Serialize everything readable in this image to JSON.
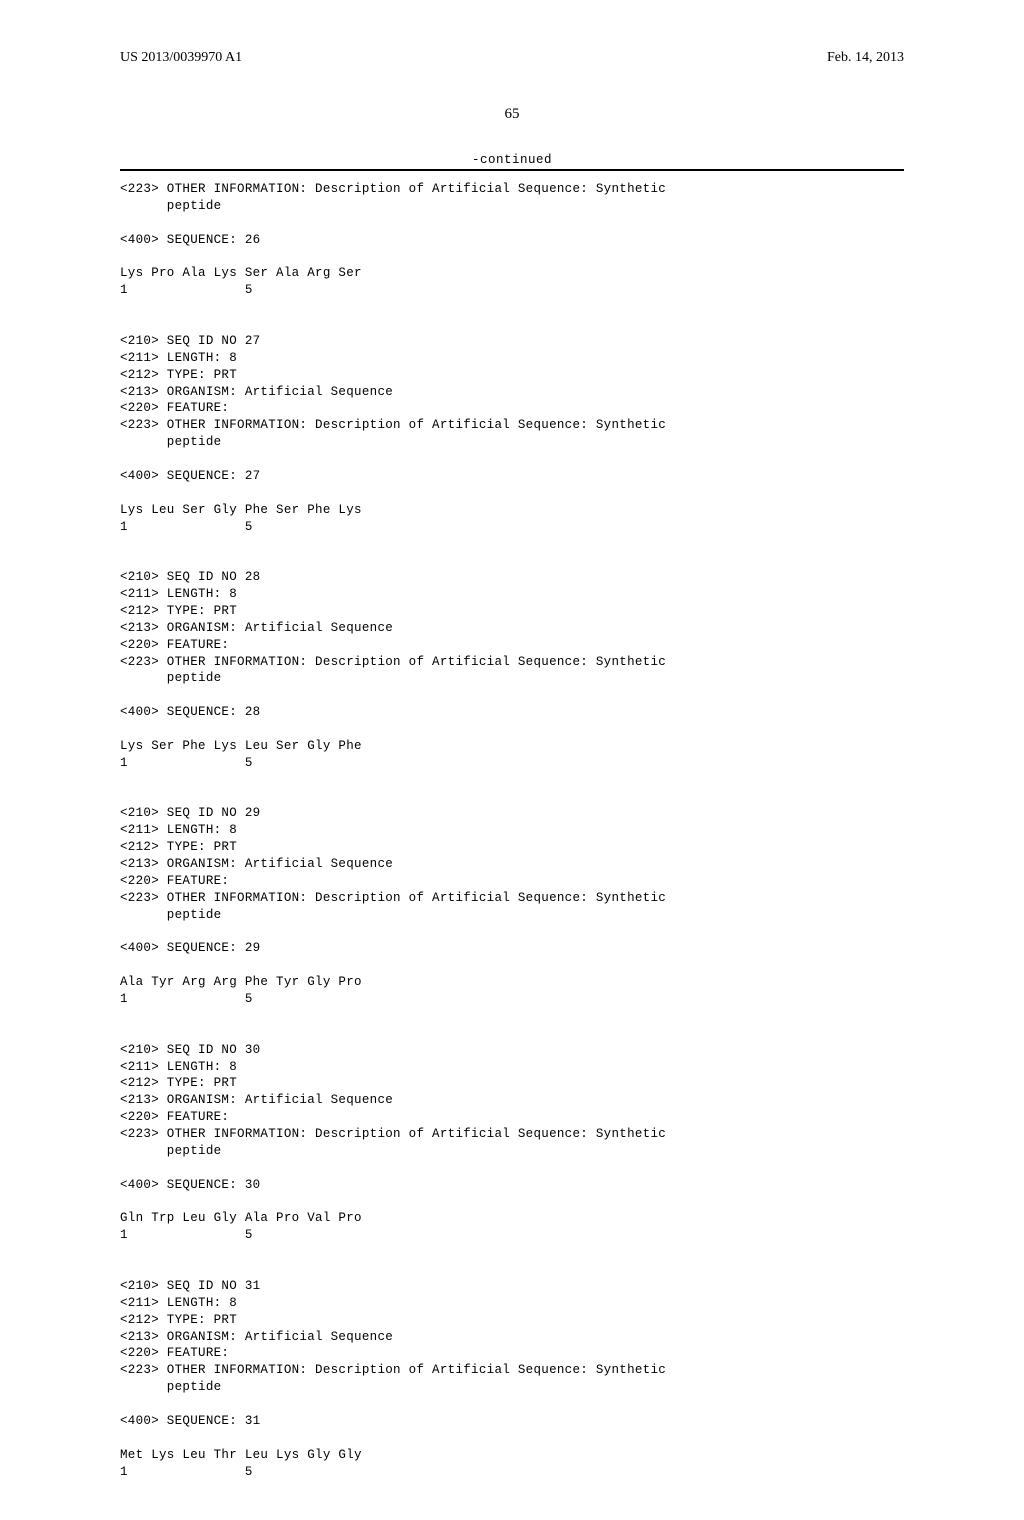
{
  "header": {
    "left": "US 2013/0039970 A1",
    "right": "Feb. 14, 2013"
  },
  "page_number": "65",
  "continued_label": "-continued",
  "entries": [
    {
      "pre_lines": [
        "<223> OTHER INFORMATION: Description of Artificial Sequence: Synthetic",
        "      peptide",
        "",
        "<400> SEQUENCE: 26",
        ""
      ],
      "seq_line": "Lys Pro Ala Lys Ser Ala Arg Ser",
      "pos_line": "1               5"
    },
    {
      "pre_lines": [
        "",
        "",
        "<210> SEQ ID NO 27",
        "<211> LENGTH: 8",
        "<212> TYPE: PRT",
        "<213> ORGANISM: Artificial Sequence",
        "<220> FEATURE:",
        "<223> OTHER INFORMATION: Description of Artificial Sequence: Synthetic",
        "      peptide",
        "",
        "<400> SEQUENCE: 27",
        ""
      ],
      "seq_line": "Lys Leu Ser Gly Phe Ser Phe Lys",
      "pos_line": "1               5"
    },
    {
      "pre_lines": [
        "",
        "",
        "<210> SEQ ID NO 28",
        "<211> LENGTH: 8",
        "<212> TYPE: PRT",
        "<213> ORGANISM: Artificial Sequence",
        "<220> FEATURE:",
        "<223> OTHER INFORMATION: Description of Artificial Sequence: Synthetic",
        "      peptide",
        "",
        "<400> SEQUENCE: 28",
        ""
      ],
      "seq_line": "Lys Ser Phe Lys Leu Ser Gly Phe",
      "pos_line": "1               5"
    },
    {
      "pre_lines": [
        "",
        "",
        "<210> SEQ ID NO 29",
        "<211> LENGTH: 8",
        "<212> TYPE: PRT",
        "<213> ORGANISM: Artificial Sequence",
        "<220> FEATURE:",
        "<223> OTHER INFORMATION: Description of Artificial Sequence: Synthetic",
        "      peptide",
        "",
        "<400> SEQUENCE: 29",
        ""
      ],
      "seq_line": "Ala Tyr Arg Arg Phe Tyr Gly Pro",
      "pos_line": "1               5"
    },
    {
      "pre_lines": [
        "",
        "",
        "<210> SEQ ID NO 30",
        "<211> LENGTH: 8",
        "<212> TYPE: PRT",
        "<213> ORGANISM: Artificial Sequence",
        "<220> FEATURE:",
        "<223> OTHER INFORMATION: Description of Artificial Sequence: Synthetic",
        "      peptide",
        "",
        "<400> SEQUENCE: 30",
        ""
      ],
      "seq_line": "Gln Trp Leu Gly Ala Pro Val Pro",
      "pos_line": "1               5"
    },
    {
      "pre_lines": [
        "",
        "",
        "<210> SEQ ID NO 31",
        "<211> LENGTH: 8",
        "<212> TYPE: PRT",
        "<213> ORGANISM: Artificial Sequence",
        "<220> FEATURE:",
        "<223> OTHER INFORMATION: Description of Artificial Sequence: Synthetic",
        "      peptide",
        "",
        "<400> SEQUENCE: 31",
        ""
      ],
      "seq_line": "Met Lys Leu Thr Leu Lys Gly Gly",
      "pos_line": "1               5"
    }
  ]
}
